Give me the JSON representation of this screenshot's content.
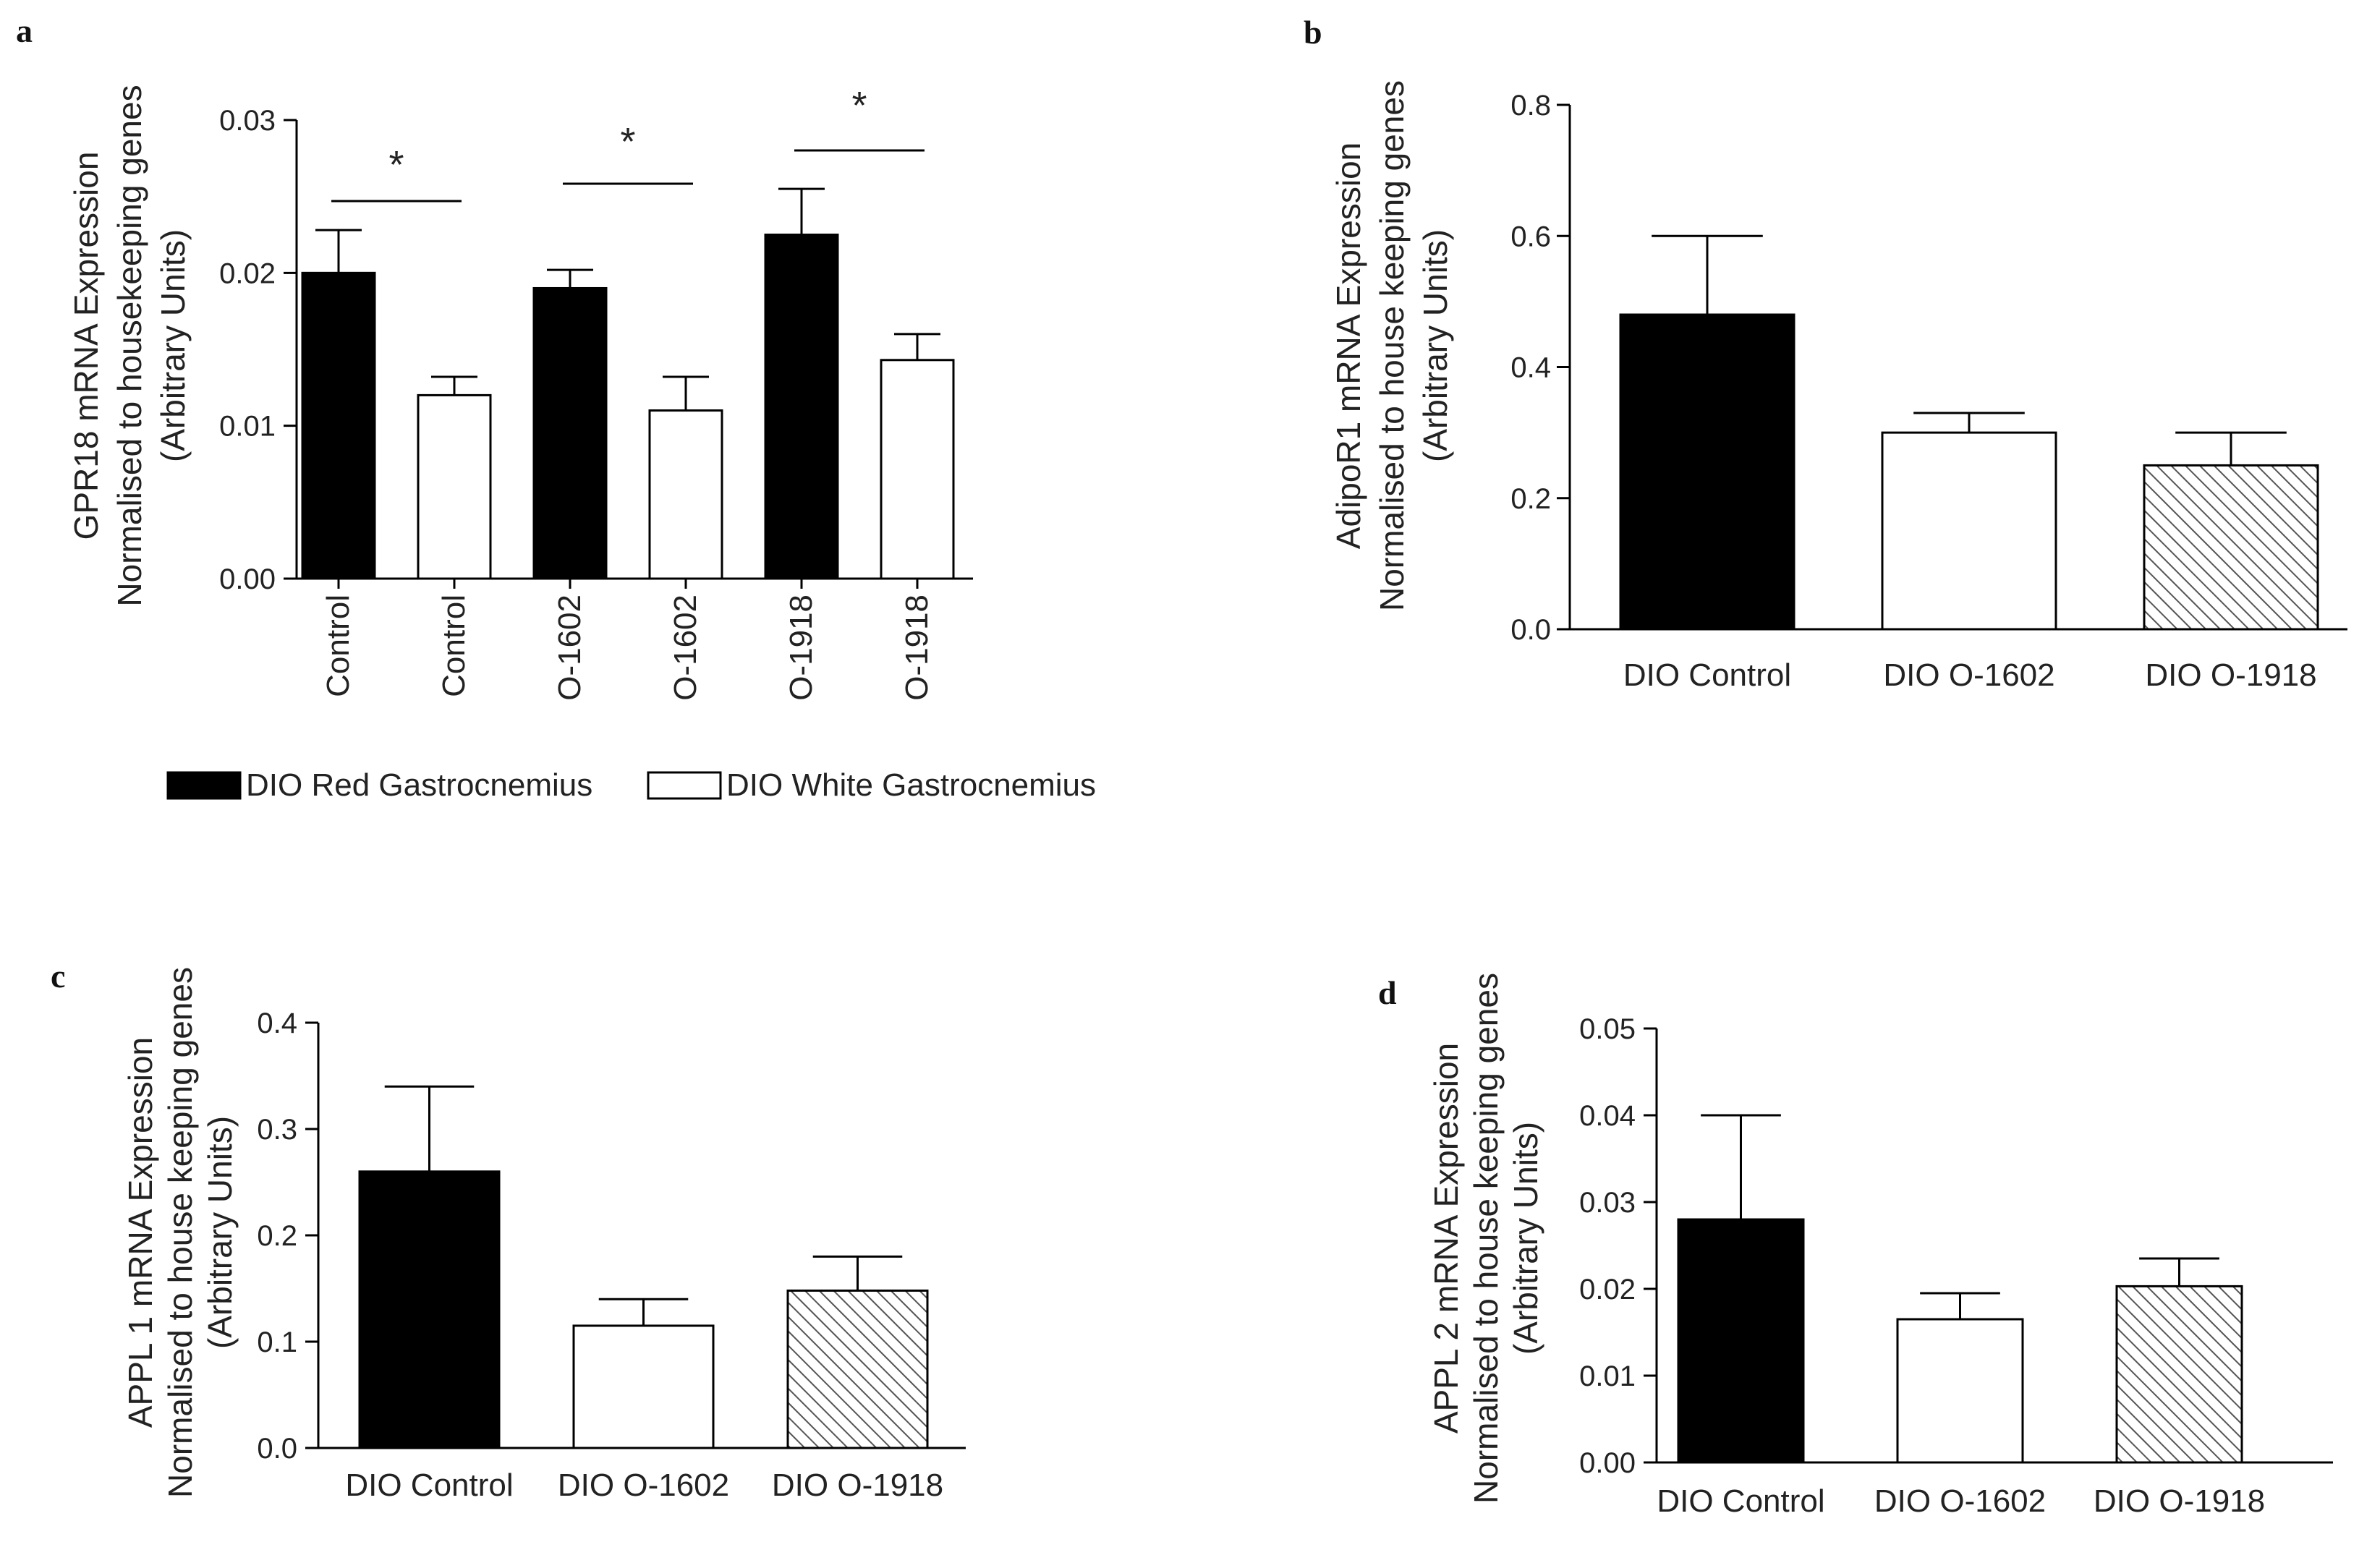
{
  "colors": {
    "filled": "#000000",
    "open": "#ffffff",
    "hatched": "#d9d9d9",
    "ink": "#000000"
  },
  "chart_data": [
    {
      "panel": "a",
      "type": "bar",
      "categories": [
        "Control",
        "Control",
        "O-1602",
        "O-1602",
        "O-1918",
        "O-1918"
      ],
      "values": [
        0.02,
        0.012,
        0.019,
        0.011,
        0.0225,
        0.0143
      ],
      "errors": [
        0.0028,
        0.0012,
        0.0012,
        0.0022,
        0.003,
        0.0017
      ],
      "styles": [
        "filled",
        "open",
        "filled",
        "open",
        "filled",
        "open"
      ],
      "ylabel": [
        "GPR18 mRNA Expression",
        "Normalised to housekeeping genes",
        "(Arbitrary Units)"
      ],
      "ylim": [
        0,
        0.03
      ],
      "yticks": [
        "0.00",
        "0.01",
        "0.02",
        "0.03"
      ],
      "ytick_values": [
        0,
        0.01,
        0.02,
        0.03
      ],
      "significance": [
        {
          "pair": [
            0,
            1
          ],
          "label": "*"
        },
        {
          "pair": [
            2,
            3
          ],
          "label": "*"
        },
        {
          "pair": [
            4,
            5
          ],
          "label": "*"
        }
      ],
      "legend": [
        {
          "label": "DIO Red Gastrocnemius",
          "style": "filled"
        },
        {
          "label": "DIO White  Gastrocnemius",
          "style": "open"
        }
      ]
    },
    {
      "panel": "b",
      "type": "bar",
      "categories": [
        "DIO Control",
        "DIO O-1602",
        "DIO O-1918"
      ],
      "values": [
        0.48,
        0.3,
        0.25
      ],
      "errors": [
        0.12,
        0.03,
        0.05
      ],
      "styles": [
        "filled",
        "open",
        "hatched"
      ],
      "ylabel": [
        "AdipoR1 mRNA Expression",
        "Normalised to house keeping genes",
        "(Arbitrary Units)"
      ],
      "ylim": [
        0,
        0.8
      ],
      "yticks": [
        "0.0",
        "0.2",
        "0.4",
        "0.6",
        "0.8"
      ],
      "ytick_values": [
        0,
        0.2,
        0.4,
        0.6,
        0.8
      ]
    },
    {
      "panel": "c",
      "type": "bar",
      "categories": [
        "DIO Control",
        "DIO O-1602",
        "DIO O-1918"
      ],
      "values": [
        0.26,
        0.115,
        0.148
      ],
      "errors": [
        0.08,
        0.025,
        0.032
      ],
      "styles": [
        "filled",
        "open",
        "hatched"
      ],
      "ylabel": [
        "APPL 1 mRNA Expression",
        "Normalised to house keeping genes",
        "(Arbitrary Units)"
      ],
      "ylim": [
        0,
        0.4
      ],
      "yticks": [
        "0.0",
        "0.1",
        "0.2",
        "0.3",
        "0.4"
      ],
      "ytick_values": [
        0,
        0.1,
        0.2,
        0.3,
        0.4
      ]
    },
    {
      "panel": "d",
      "type": "bar",
      "categories": [
        "DIO Control",
        "DIO O-1602",
        "DIO O-1918"
      ],
      "values": [
        0.028,
        0.0165,
        0.0203
      ],
      "errors": [
        0.012,
        0.003,
        0.0032
      ],
      "styles": [
        "filled",
        "open",
        "hatched"
      ],
      "ylabel": [
        "APPL 2 mRNA Expression",
        "Normalised to house keeping genes",
        "(Arbitrary Units)"
      ],
      "ylim": [
        0,
        0.05
      ],
      "yticks": [
        "0.00",
        "0.01",
        "0.02",
        "0.03",
        "0.04",
        "0.05"
      ],
      "ytick_values": [
        0,
        0.01,
        0.02,
        0.03,
        0.04,
        0.05
      ]
    }
  ]
}
